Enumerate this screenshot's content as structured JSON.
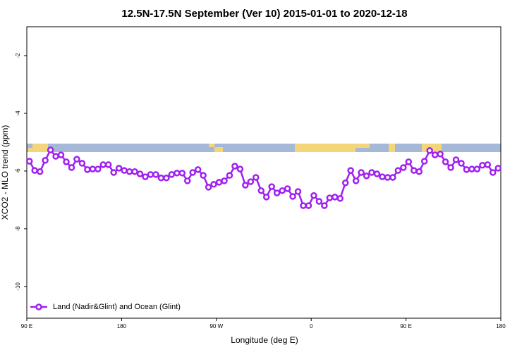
{
  "chart_data": {
    "type": "line",
    "title": "12.5N-17.5N September (Ver 10)   2015-01-01 to 2020-12-18",
    "x_label": "Longitude (deg E)",
    "y_label": "XCO2 - MLO trend (ppm)",
    "x": [
      92.5,
      97.5,
      102.5,
      107.5,
      112.5,
      117.5,
      122.5,
      127.5,
      132.5,
      137.5,
      142.5,
      147.5,
      152.5,
      157.5,
      162.5,
      167.5,
      172.5,
      177.5,
      182.5,
      187.5,
      192.5,
      197.5,
      202.5,
      207.5,
      212.5,
      217.5,
      222.5,
      227.5,
      232.5,
      237.5,
      242.5,
      247.5,
      252.5,
      257.5,
      262.5,
      267.5,
      272.5,
      277.5,
      282.5,
      287.5,
      292.5,
      297.5,
      302.5,
      307.5,
      312.5,
      317.5,
      322.5,
      327.5,
      332.5,
      337.5,
      342.5,
      347.5,
      352.5,
      357.5,
      362.5,
      367.5,
      372.5,
      377.5,
      382.5,
      387.5,
      392.5,
      397.5,
      402.5,
      407.5,
      412.5,
      417.5,
      422.5,
      427.5,
      432.5,
      437.5,
      442.5,
      447.5,
      452.5,
      457.5,
      462.5,
      467.5,
      472.5,
      477.5,
      482.5,
      487.5,
      492.5,
      497.5,
      502.5,
      507.5,
      512.5,
      517.5,
      522.5,
      527.5,
      532.5,
      537.5
    ],
    "series": [
      {
        "name": "Land (Nadir&Glint) and Ocean (Glint)",
        "color": "#a020f0",
        "values": [
          -5.66,
          -5.98,
          -6.02,
          -5.63,
          -5.27,
          -5.49,
          -5.44,
          -5.68,
          -5.88,
          -5.59,
          -5.73,
          -5.95,
          -5.93,
          -5.93,
          -5.78,
          -5.78,
          -6.05,
          -5.9,
          -5.98,
          -6.02,
          -6.02,
          -6.1,
          -6.2,
          -6.12,
          -6.12,
          -6.24,
          -6.24,
          -6.12,
          -6.07,
          -6.07,
          -6.34,
          -6.05,
          -5.95,
          -6.15,
          -6.56,
          -6.46,
          -6.39,
          -6.34,
          -6.15,
          -5.83,
          -5.93,
          -6.49,
          -6.37,
          -6.22,
          -6.68,
          -6.9,
          -6.54,
          -6.76,
          -6.68,
          -6.61,
          -6.88,
          -6.71,
          -7.2,
          -7.2,
          -6.85,
          -7.05,
          -7.2,
          -6.93,
          -6.9,
          -6.95,
          -6.41,
          -5.98,
          -6.34,
          -6.05,
          -6.17,
          -6.05,
          -6.1,
          -6.2,
          -6.22,
          -6.22,
          -5.98,
          -5.88,
          -5.68,
          -5.98,
          -6.02,
          -5.66,
          -5.29,
          -5.44,
          -5.41,
          -5.68,
          -5.88,
          -5.61,
          -5.73,
          -5.95,
          -5.93,
          -5.93,
          -5.8,
          -5.78,
          -6.05,
          -5.9
        ]
      }
    ],
    "xlim": [
      90,
      540
    ],
    "xticks": [
      {
        "value": 90,
        "label": "90 E"
      },
      {
        "value": 180,
        "label": "180"
      },
      {
        "value": 270,
        "label": "90 W"
      },
      {
        "value": 360,
        "label": "0"
      },
      {
        "value": 450,
        "label": "90 E"
      },
      {
        "value": 540,
        "label": "180"
      }
    ],
    "ylim": [
      -11.1,
      -1.0
    ],
    "yticks": [
      -2,
      -4,
      -6,
      -8,
      -10
    ],
    "legend": "bottom-left"
  }
}
